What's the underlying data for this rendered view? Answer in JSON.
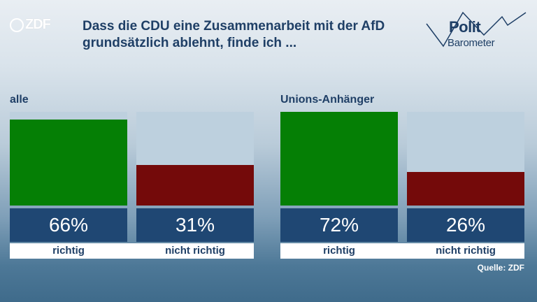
{
  "brand": {
    "logo_text": "ZDF",
    "logo_icon": "zdf-ring-icon"
  },
  "title": "Dass die CDU eine Zusammenarbeit mit der AfD grundsätzlich ablehnt, finde ich ...",
  "politbarometer": {
    "line1": "Polit",
    "line2": "Barometer",
    "icon": "zigzag-line-icon"
  },
  "colors": {
    "richtig": "#057f05",
    "nicht_richtig": "#740a0a",
    "bar_bg": "#bdd0de",
    "value_box": "#1f4773",
    "text": "#1f3f66"
  },
  "chart_data": [
    {
      "type": "bar",
      "group": "alle",
      "categories": [
        "richtig",
        "nicht richtig"
      ],
      "values": [
        66,
        31
      ],
      "value_labels": [
        "66%",
        "31%"
      ],
      "ylim": [
        0,
        72
      ]
    },
    {
      "type": "bar",
      "group": "Unions-Anhänger",
      "categories": [
        "richtig",
        "nicht richtig"
      ],
      "values": [
        72,
        26
      ],
      "value_labels": [
        "72%",
        "26%"
      ],
      "ylim": [
        0,
        72
      ]
    }
  ],
  "source": "Quelle: ZDF"
}
